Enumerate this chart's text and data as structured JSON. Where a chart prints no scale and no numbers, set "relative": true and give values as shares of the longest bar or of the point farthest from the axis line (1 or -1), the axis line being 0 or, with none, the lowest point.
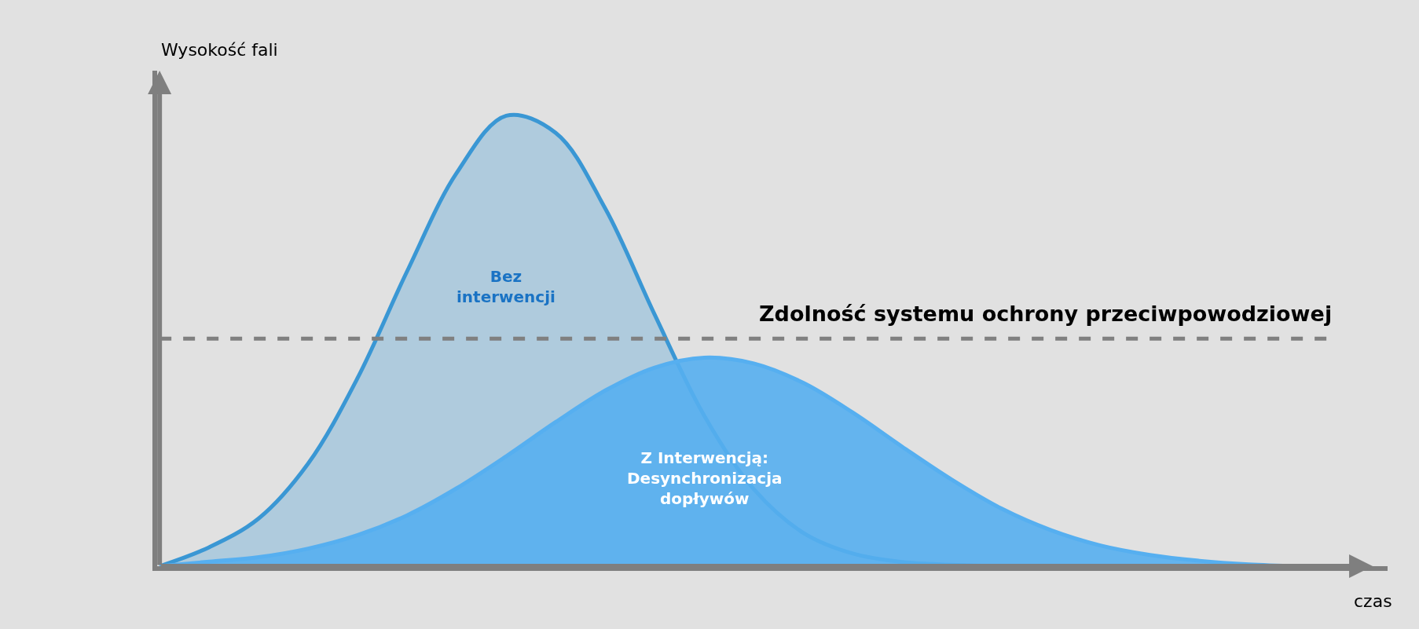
{
  "chart_data": {
    "type": "area",
    "relative": true,
    "xlabel": "czas",
    "ylabel": "Wysokość fali",
    "categories": [
      null,
      null,
      null,
      null,
      null,
      null,
      null,
      null,
      null,
      null,
      null,
      null,
      null,
      null,
      null,
      null,
      null,
      null,
      null,
      null,
      null,
      null,
      null,
      null
    ],
    "series": [
      {
        "name": "Bez interwencji",
        "color": "#3a97d4",
        "values": [
          0.0,
          0.042,
          0.106,
          0.228,
          0.418,
          0.655,
          0.873,
          1.0,
          0.962,
          0.794,
          0.558,
          0.334,
          0.171,
          0.074,
          0.028,
          0.009,
          0.003,
          0.0,
          0.0,
          0.0,
          0.0,
          0.0,
          0.0,
          0.0
        ]
      },
      {
        "name": "Z Interwencją: Desynchronizacja dopływów",
        "color": "#56aff0",
        "values": [
          0.0,
          0.01,
          0.02,
          0.039,
          0.069,
          0.113,
          0.173,
          0.244,
          0.32,
          0.39,
          0.441,
          0.463,
          0.45,
          0.407,
          0.341,
          0.265,
          0.192,
          0.128,
          0.08,
          0.046,
          0.025,
          0.012,
          0.004,
          0.0
        ]
      }
    ],
    "ref_lines": [
      {
        "axis": "y",
        "value": 0.505,
        "label": "Zdolność systemu ochrony przeciwpowodziowej",
        "color": "#808080",
        "line_style": "dashed"
      }
    ],
    "legend": false,
    "grid": false
  }
}
